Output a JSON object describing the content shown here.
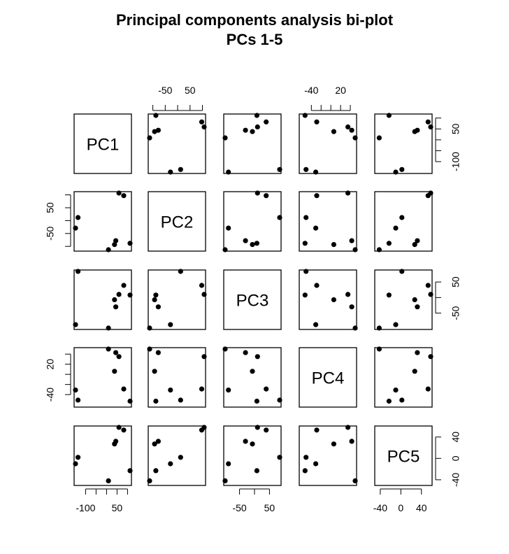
{
  "chart_data": {
    "type": "scatter",
    "title": "Principal components analysis bi-plot",
    "subtitle": "PCs 1-5",
    "variables": [
      "PC1",
      "PC2",
      "PC3",
      "PC4",
      "PC5"
    ],
    "ranges": {
      "PC1": [
        -148,
        112
      ],
      "PC2": [
        -113,
        107
      ],
      "PC3": [
        -98,
        84
      ],
      "PC4": [
        -62,
        50
      ],
      "PC5": [
        -48,
        58
      ]
    },
    "ticks": {
      "PC1": [
        -100,
        -50,
        0,
        50,
        100
      ],
      "PC2": [
        -100,
        -50,
        0,
        50,
        100
      ],
      "PC3": [
        -50,
        0,
        50
      ],
      "PC4": [
        -40,
        -20,
        0,
        20,
        40
      ],
      "PC5": [
        -40,
        0,
        40
      ]
    },
    "tick_labels": {
      "PC1": [
        "-100",
        "50"
      ],
      "PC2": [
        "-50",
        "50"
      ],
      "PC3": [
        "-50",
        "50"
      ],
      "PC4": [
        "-40",
        "20"
      ],
      "PC5": [
        "-40",
        "0",
        "40"
      ]
    },
    "points": [
      {
        "PC1": 82,
        "PC2": 97,
        "PC3": 39,
        "PC4": -29,
        "PC5": 53
      },
      {
        "PC1": 112,
        "PC2": -88,
        "PC3": 8,
        "PC4": -53,
        "PC5": -23
      },
      {
        "PC1": 9,
        "PC2": -113,
        "PC3": -98,
        "PC4": 50,
        "PC5": -42
      },
      {
        "PC1": -136,
        "PC2": 12,
        "PC3": 84,
        "PC4": -51,
        "PC5": 2
      },
      {
        "PC1": -148,
        "PC2": -29,
        "PC3": -87,
        "PC4": -31,
        "PC5": -10
      },
      {
        "PC1": 38,
        "PC2": -93,
        "PC3": -7,
        "PC4": 6,
        "PC5": 27
      },
      {
        "PC1": 59,
        "PC2": 107,
        "PC3": 10,
        "PC4": 35,
        "PC5": 58
      },
      {
        "PC1": 44,
        "PC2": -78,
        "PC3": -30,
        "PC4": 43,
        "PC5": 32
      }
    ]
  }
}
